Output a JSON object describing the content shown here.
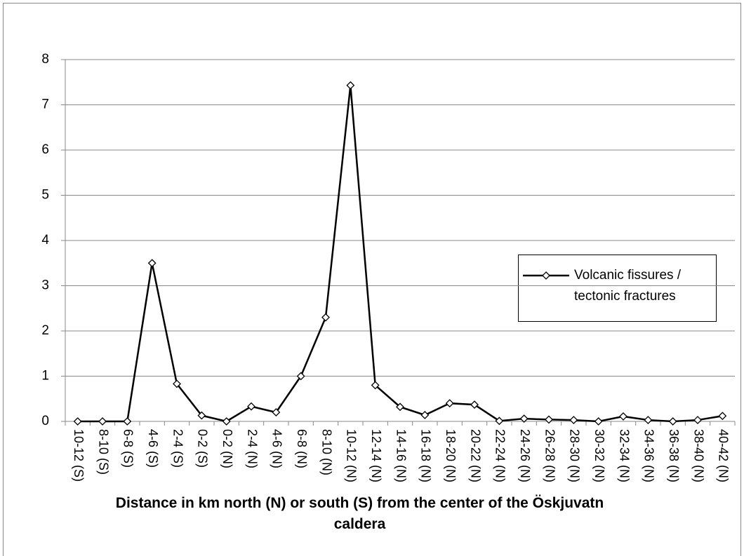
{
  "chart_data": {
    "type": "line",
    "x_label": "Distance in km north (N) or south (S) from the center of the Öskjuvatn caldera",
    "categories": [
      "10-12 (S)",
      "8-10 (S)",
      "6-8 (S)",
      "4-6 (S)",
      "2-4 (S)",
      "0-2 (S)",
      "0-2 (N)",
      "2-4 (N)",
      "4-6 (N)",
      "6-8 (N)",
      "8-10 (N)",
      "10-12 (N)",
      "12-14 (N)",
      "14-16 (N)",
      "16-18 (N)",
      "18-20 (N)",
      "20-22 (N)",
      "22-24 (N)",
      "24-26 (N)",
      "26-28 (N)",
      "28-30 (N)",
      "30-32 (N)",
      "32-34 (N)",
      "34-36 (N)",
      "36-38 (N)",
      "38-40 (N)",
      "40-42 (N)"
    ],
    "series": [
      {
        "name": "Volcanic fissures / tectonic fractures",
        "color": "#000000",
        "values": [
          0,
          0,
          0,
          3.5,
          0.83,
          0.13,
          0,
          0.33,
          0.2,
          1.0,
          2.3,
          7.43,
          0.8,
          0.32,
          0.14,
          0.4,
          0.37,
          0.01,
          0.06,
          0.04,
          0.03,
          0,
          0.11,
          0.03,
          0,
          0.03,
          0.12
        ]
      }
    ],
    "ylim": [
      0,
      8
    ],
    "yticks": [
      0,
      1,
      2,
      3,
      4,
      5,
      6,
      7,
      8
    ],
    "grid": true,
    "legend": "right"
  }
}
